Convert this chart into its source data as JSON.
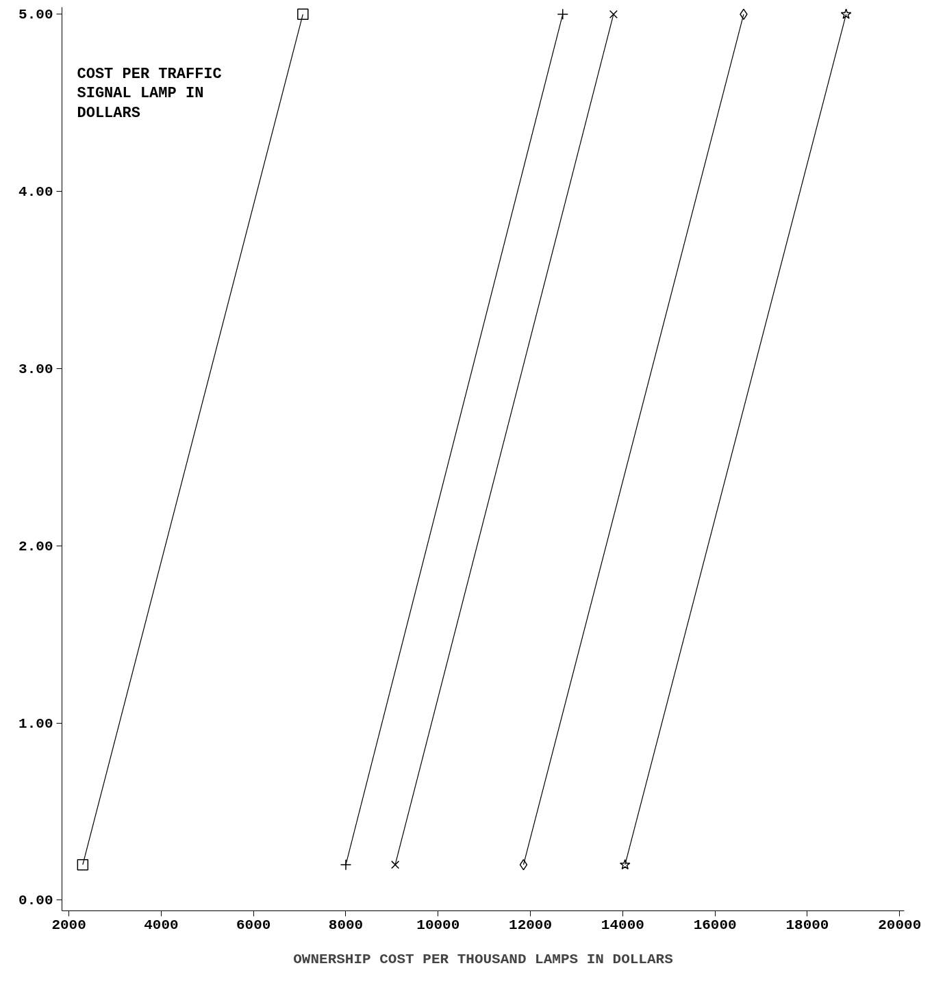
{
  "chart_data": {
    "type": "line",
    "xlabel": "OWNERSHIP COST PER THOUSAND LAMPS IN DOLLARS",
    "annotations": [
      "COST PER TRAFFIC\nSIGNAL LAMP IN\nDOLLARS"
    ],
    "xlim": [
      1850,
      20100
    ],
    "ylim": [
      -0.06,
      5.04
    ],
    "xticks": [
      2000,
      4000,
      6000,
      8000,
      10000,
      12000,
      14000,
      16000,
      18000,
      20000
    ],
    "yticks": [
      {
        "value": 0,
        "label": "0.00"
      },
      {
        "value": 1,
        "label": "1.00"
      },
      {
        "value": 2,
        "label": "2.00"
      },
      {
        "value": 3,
        "label": "3.00"
      },
      {
        "value": 4,
        "label": "4.00"
      },
      {
        "value": 5,
        "label": "5.00"
      }
    ],
    "grid": false,
    "line_style": "solid",
    "series": [
      {
        "color": "#000000",
        "marker": "square",
        "x": [
          2300,
          7070
        ],
        "values": [
          0.2,
          5.0
        ]
      },
      {
        "color": "#000000",
        "marker": "cross",
        "x": [
          8000,
          12700
        ],
        "values": [
          0.2,
          5.0
        ]
      },
      {
        "color": "#000000",
        "marker": "x",
        "x": [
          9070,
          13800
        ],
        "values": [
          0.2,
          5.0
        ]
      },
      {
        "color": "#000000",
        "marker": "diamond",
        "x": [
          11850,
          16620
        ],
        "values": [
          0.2,
          5.0
        ]
      },
      {
        "color": "#000000",
        "marker": "star",
        "x": [
          14050,
          18840
        ],
        "values": [
          0.2,
          5.0
        ]
      }
    ]
  }
}
